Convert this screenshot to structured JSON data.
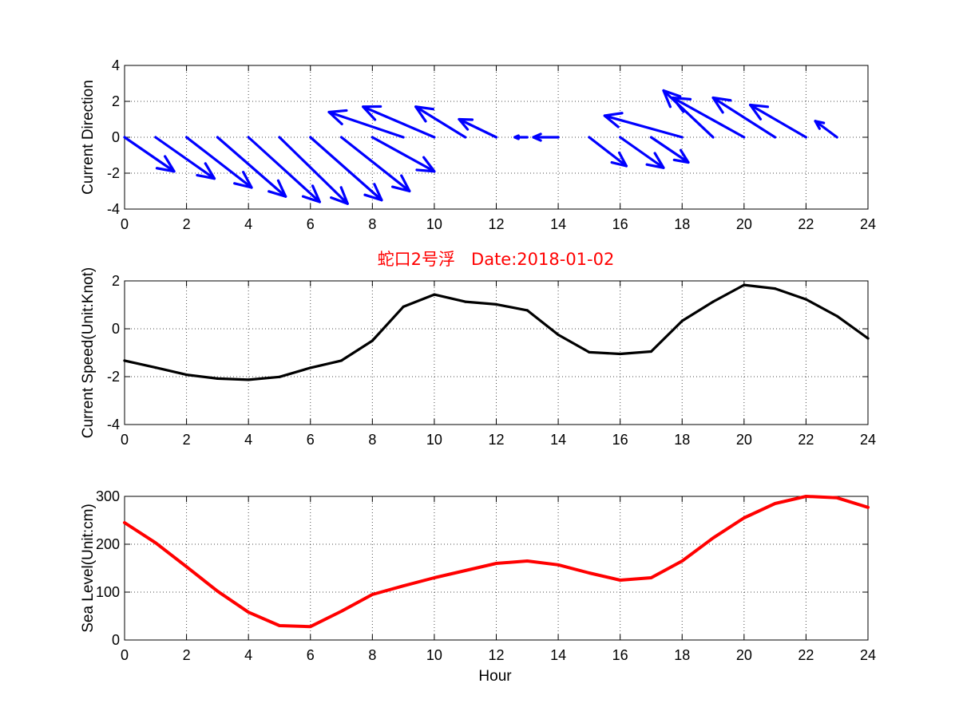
{
  "colors": {
    "direction": "#0000ff",
    "speed": "#000000",
    "sea_level": "#ff0000",
    "title": "#ff0000"
  },
  "chart_data": [
    {
      "type": "line",
      "subtype": "quiver",
      "ylabel": "Current Direction",
      "xlabel": "",
      "title": "",
      "xlim": [
        0,
        24
      ],
      "ylim": [
        -4,
        4
      ],
      "xticks": [
        "0",
        "2",
        "4",
        "6",
        "8",
        "10",
        "12",
        "14",
        "16",
        "18",
        "20",
        "22",
        "24"
      ],
      "yticks": [
        "-4",
        "-2",
        "0",
        "2",
        "4"
      ],
      "grid": true,
      "x": [
        0,
        1,
        2,
        3,
        4,
        5,
        6,
        7,
        8,
        9,
        10,
        11,
        12,
        13,
        14,
        15,
        16,
        17,
        18,
        19,
        20,
        21,
        22,
        23
      ],
      "u": [
        1.6,
        1.9,
        2.1,
        2.2,
        2.3,
        2.2,
        2.3,
        2.2,
        2.0,
        -2.4,
        -2.3,
        -1.6,
        -1.2,
        -0.4,
        -0.8,
        1.2,
        1.4,
        1.2,
        -2.5,
        -1.6,
        -2.3,
        -2.0,
        -1.8,
        -0.7
      ],
      "v": [
        -1.9,
        -2.3,
        -2.8,
        -3.3,
        -3.6,
        -3.7,
        -3.5,
        -3.0,
        -1.9,
        1.4,
        1.7,
        1.7,
        1.0,
        0.0,
        0.0,
        -1.6,
        -1.7,
        -1.4,
        1.2,
        2.6,
        2.2,
        2.2,
        1.8,
        0.9
      ]
    },
    {
      "type": "line",
      "ylabel": "Current Speed(Unit:Knot)",
      "xlabel": "",
      "title": "蛇口2号浮   Date:2018-01-02",
      "xlim": [
        0,
        24
      ],
      "ylim": [
        -4,
        2
      ],
      "xticks": [
        "0",
        "2",
        "4",
        "6",
        "8",
        "10",
        "12",
        "14",
        "16",
        "18",
        "20",
        "22",
        "24"
      ],
      "yticks": [
        "-4",
        "-2",
        "0",
        "2"
      ],
      "grid": true,
      "x": [
        0,
        1,
        2,
        3,
        4,
        5,
        6,
        7,
        8,
        9,
        10,
        11,
        12,
        13,
        14,
        15,
        16,
        17,
        18,
        19,
        20,
        21,
        22,
        23,
        24
      ],
      "y": [
        -1.33,
        -1.62,
        -1.92,
        -2.08,
        -2.13,
        -2.01,
        -1.63,
        -1.33,
        -0.5,
        0.92,
        1.43,
        1.13,
        1.02,
        0.77,
        -0.25,
        -0.98,
        -1.05,
        -0.95,
        0.33,
        1.13,
        1.83,
        1.68,
        1.23,
        0.53,
        -0.4
      ]
    },
    {
      "type": "line",
      "ylabel": "Sea Level(Unit:cm)",
      "xlabel": "Hour",
      "title": "",
      "xlim": [
        0,
        24
      ],
      "ylim": [
        0,
        300
      ],
      "xticks": [
        "0",
        "2",
        "4",
        "6",
        "8",
        "10",
        "12",
        "14",
        "16",
        "18",
        "20",
        "22",
        "24"
      ],
      "yticks": [
        "0",
        "100",
        "200",
        "300"
      ],
      "grid": true,
      "x": [
        0,
        1,
        2,
        3,
        4,
        5,
        6,
        7,
        8,
        9,
        10,
        11,
        12,
        13,
        14,
        15,
        16,
        17,
        18,
        19,
        20,
        21,
        22,
        23,
        24
      ],
      "y": [
        245,
        203,
        153,
        102,
        58,
        30,
        28,
        60,
        95,
        113,
        130,
        145,
        160,
        165,
        157,
        140,
        125,
        130,
        165,
        213,
        255,
        285,
        300,
        297,
        277
      ]
    }
  ]
}
